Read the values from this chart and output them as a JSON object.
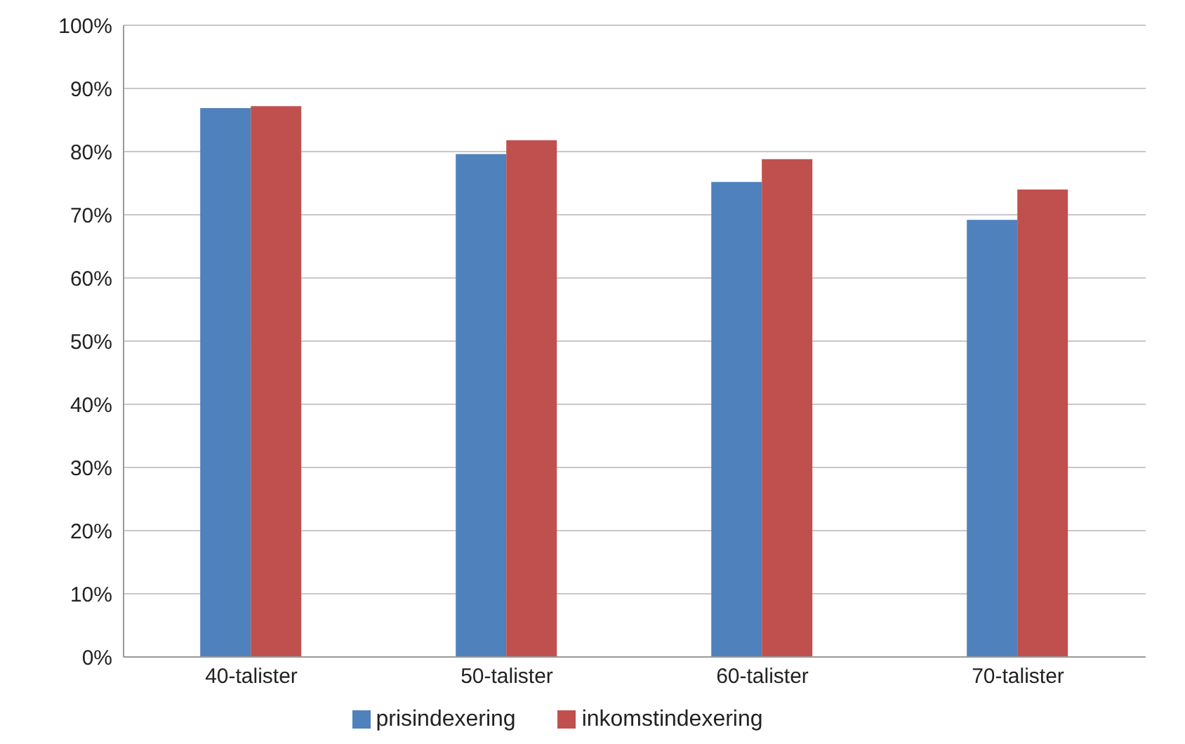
{
  "chart_data": {
    "type": "bar",
    "categories": [
      "40-talister",
      "50-talister",
      "60-talister",
      "70-talister"
    ],
    "series": [
      {
        "name": "prisindexering",
        "color": "#4f81bd",
        "values": [
          0.869,
          0.796,
          0.752,
          0.692
        ]
      },
      {
        "name": "inkomstindexering",
        "color": "#c0504d",
        "values": [
          0.872,
          0.818,
          0.788,
          0.74
        ]
      }
    ],
    "ylim": [
      0,
      1
    ],
    "yticks": [
      {
        "value": 0,
        "label": "0%"
      },
      {
        "value": 0.1,
        "label": "10%"
      },
      {
        "value": 0.2,
        "label": "20%"
      },
      {
        "value": 0.3,
        "label": "30%"
      },
      {
        "value": 0.4,
        "label": "40%"
      },
      {
        "value": 0.5,
        "label": "50%"
      },
      {
        "value": 0.6,
        "label": "60%"
      },
      {
        "value": 0.7,
        "label": "70%"
      },
      {
        "value": 0.8,
        "label": "80%"
      },
      {
        "value": 0.9,
        "label": "90%"
      },
      {
        "value": 1,
        "label": "100%"
      }
    ],
    "grid": "y",
    "legend": "bottom"
  }
}
